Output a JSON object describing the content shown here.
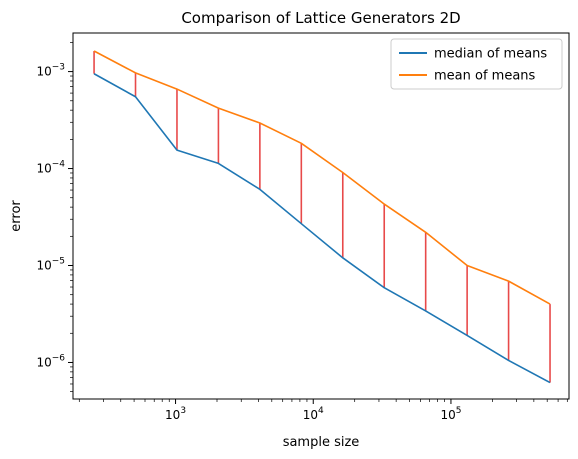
{
  "chart_data": {
    "type": "line",
    "title": "Comparison of Lattice Generators 2D",
    "xlabel": "sample size",
    "ylabel": "error",
    "xscale": "log",
    "yscale": "log",
    "xlim": [
      180,
      720000
    ],
    "ylim": [
      4.2e-07,
      0.0025
    ],
    "x": [
      256,
      512,
      1024,
      2048,
      4096,
      8192,
      16384,
      32768,
      65536,
      131072,
      262144,
      524288
    ],
    "series": [
      {
        "name": "median of means",
        "color": "#1f77b4",
        "values": [
          0.00095,
          0.00055,
          0.000155,
          0.000113,
          6.1e-05,
          2.7e-05,
          1.2e-05,
          5.9e-06,
          3.4e-06,
          1.9e-06,
          1.05e-06,
          6.2e-07
        ]
      },
      {
        "name": "mean of means",
        "color": "#ff7f0e",
        "values": [
          0.00163,
          0.00097,
          0.00066,
          0.00042,
          0.000295,
          0.000182,
          9.1e-05,
          4.3e-05,
          2.2e-05,
          1e-05,
          6.9e-06,
          4e-06
        ]
      }
    ],
    "connector_color": "#e84a4a",
    "x_tick_labels": [
      {
        "value": 1000,
        "base": "10",
        "exp": "3"
      },
      {
        "value": 10000,
        "base": "10",
        "exp": "4"
      },
      {
        "value": 100000,
        "base": "10",
        "exp": "5"
      }
    ],
    "y_tick_labels": [
      {
        "value": 1e-06,
        "base": "10",
        "exp": "−6"
      },
      {
        "value": 1e-05,
        "base": "10",
        "exp": "−5"
      },
      {
        "value": 0.0001,
        "base": "10",
        "exp": "−4"
      },
      {
        "value": 0.001,
        "base": "10",
        "exp": "−3"
      }
    ],
    "legend_position": "upper-right",
    "grid": false
  }
}
